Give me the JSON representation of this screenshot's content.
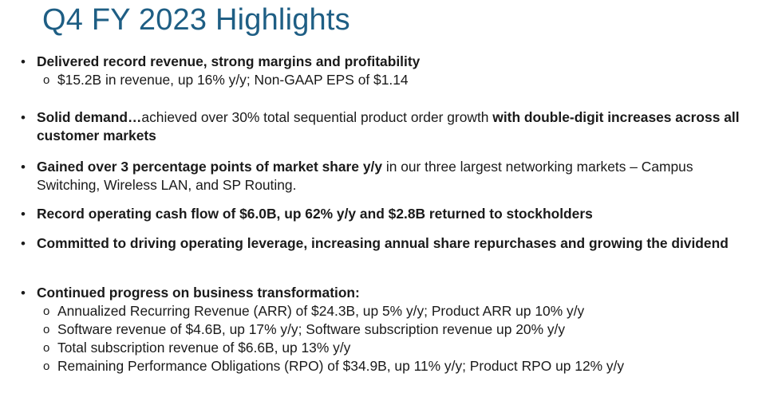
{
  "title": "Q4 FY 2023 Highlights",
  "bullet_glyph": "•",
  "sub_glyph": "o",
  "bullets": [
    {
      "bold": "Delivered record revenue, strong margins and profitability",
      "subs": [
        "$15.2B in revenue, up 16% y/y; Non-GAAP EPS of $1.14"
      ]
    },
    {
      "bold_lead": "Solid demand…",
      "normal": "achieved over 30% total sequential product order growth ",
      "bold_tail": "with double-digit increases across all customer markets"
    },
    {
      "bold_lead": "Gained over 3 percentage points of market share y/y",
      "normal": " in our three largest networking markets – Campus Switching, Wireless LAN, and SP Routing."
    },
    {
      "bold": "Record operating cash flow of $6.0B, up 62% y/y and $2.8B returned to stockholders"
    },
    {
      "bold": "Committed to driving operating leverage, increasing annual share repurchases and growing the dividend"
    },
    {
      "bold": "Continued progress on business transformation:",
      "subs": [
        "Annualized Recurring Revenue (ARR) of $24.3B, up 5% y/y; Product ARR up 10% y/y",
        "Software revenue of $4.6B, up 17% y/y; Software subscription revenue up 20% y/y",
        "Total subscription revenue of $6.6B, up 13% y/y",
        "Remaining Performance Obligations (RPO) of $34.9B, up 11% y/y; Product RPO up 12% y/y"
      ]
    }
  ]
}
